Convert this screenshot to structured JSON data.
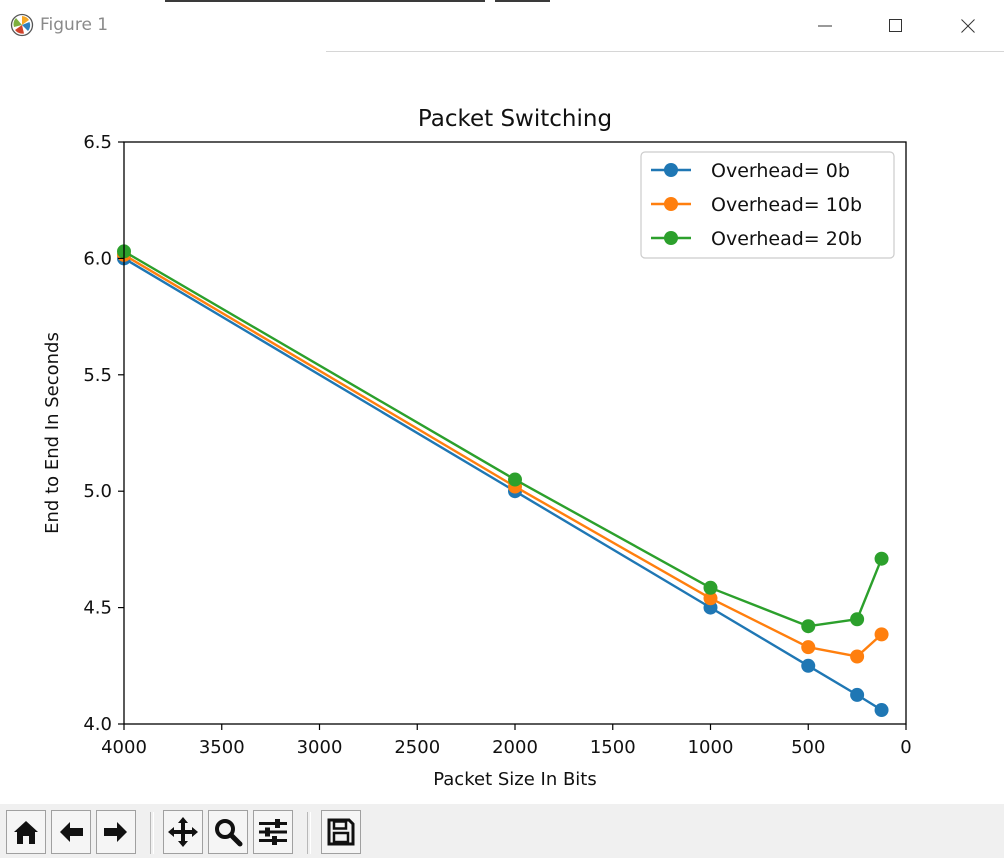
{
  "window": {
    "title": "Figure 1",
    "app_icon": "matplotlib-icon",
    "controls": [
      "minimize-icon",
      "maximize-icon",
      "close-icon"
    ]
  },
  "toolbar": {
    "buttons": [
      "home-icon",
      "back-arrow-icon",
      "forward-arrow-icon",
      "pan-icon",
      "zoom-icon",
      "subplots-icon",
      "save-icon"
    ]
  },
  "chart_data": {
    "type": "line",
    "title": "Packet Switching",
    "xlabel": "Packet Size In Bits",
    "ylabel": "End to End In Seconds",
    "xlim": [
      4000,
      0
    ],
    "ylim": [
      4.0,
      6.5
    ],
    "x_inverted": true,
    "xticks": [
      4000,
      3500,
      3000,
      2500,
      2000,
      1500,
      1000,
      500,
      0
    ],
    "yticks": [
      4.0,
      4.5,
      5.0,
      5.5,
      6.0,
      6.5
    ],
    "xtick_labels": [
      "4000",
      "3500",
      "3000",
      "2500",
      "2000",
      "1500",
      "1000",
      "500",
      "0"
    ],
    "ytick_labels": [
      "4.0",
      "4.5",
      "5.0",
      "5.5",
      "6.0",
      "6.5"
    ],
    "grid": false,
    "legend_position": "top-right",
    "markers": true,
    "x": [
      4000,
      2000,
      1000,
      500,
      250,
      125
    ],
    "series": [
      {
        "name": "Overhead= 0b",
        "color": "#1f77b4",
        "values": [
          6.0,
          5.0,
          4.5,
          4.25,
          4.125,
          4.06
        ]
      },
      {
        "name": "Overhead= 10b",
        "color": "#ff7f0e",
        "values": [
          6.015,
          5.02,
          4.54,
          4.33,
          4.29,
          4.385
        ]
      },
      {
        "name": "Overhead= 20b",
        "color": "#2ca02c",
        "values": [
          6.03,
          5.05,
          4.585,
          4.42,
          4.45,
          4.71
        ]
      }
    ]
  }
}
